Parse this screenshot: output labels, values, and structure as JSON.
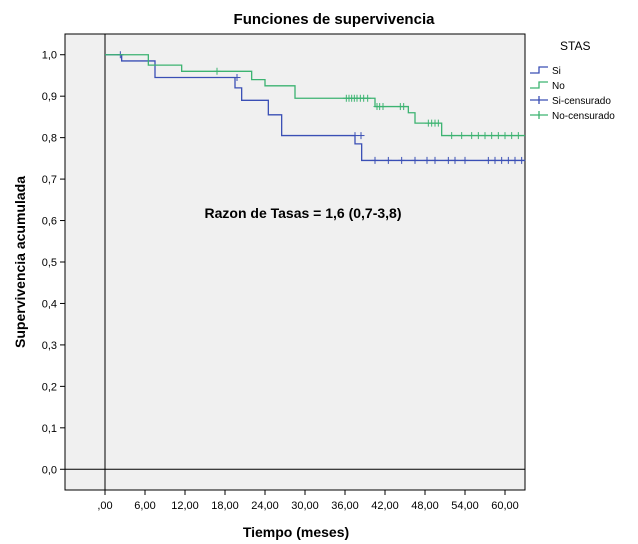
{
  "chart_data": {
    "type": "line",
    "subtype": "kaplan-meier step",
    "title": "Funciones de supervivencia",
    "xlabel": "Tiempo (meses)",
    "ylabel": "Supervivencia acumulada",
    "xlim": [
      -6,
      63
    ],
    "ylim": [
      -0.05,
      1.05
    ],
    "x_ticks": [
      0,
      6,
      12,
      18,
      24,
      30,
      36,
      42,
      48,
      54,
      60
    ],
    "x_tick_labels": [
      ",00",
      "6,00",
      "12,00",
      "18,00",
      "24,00",
      "30,00",
      "36,00",
      "42,00",
      "48,00",
      "54,00",
      "60,00"
    ],
    "y_ticks": [
      0,
      0.1,
      0.2,
      0.3,
      0.4,
      0.5,
      0.6,
      0.7,
      0.8,
      0.9,
      1.0
    ],
    "y_tick_labels": [
      "0,0",
      "0,1",
      "0,2",
      "0,3",
      "0,4",
      "0,5",
      "0,6",
      "0,7",
      "0,8",
      "0,9",
      "1,0"
    ],
    "reference_lines": {
      "x": 0,
      "y": 0
    },
    "grid": false,
    "legend": {
      "title": "STAS",
      "placement": "top-right, outside plot",
      "entries": [
        "Si",
        "No",
        "Si-censurado",
        "No-censurado"
      ]
    },
    "annotation": "Razon de Tasas = 1,6 (0,7-3,8)",
    "series": [
      {
        "name": "Si",
        "color": "#3a4fb5",
        "steps": [
          [
            0,
            1.0
          ],
          [
            2.5,
            0.985
          ],
          [
            7.5,
            0.945
          ],
          [
            19.5,
            0.92
          ],
          [
            20.5,
            0.89
          ],
          [
            24.5,
            0.855
          ],
          [
            26.5,
            0.805
          ],
          [
            37.5,
            0.785
          ],
          [
            38.5,
            0.745
          ],
          [
            63,
            0.745
          ]
        ],
        "censored": [
          [
            2.3,
            1.0
          ],
          [
            19.8,
            0.945
          ],
          [
            37.5,
            0.805
          ],
          [
            38.4,
            0.805
          ],
          [
            40.5,
            0.745
          ],
          [
            42.5,
            0.745
          ],
          [
            44.5,
            0.745
          ],
          [
            46.5,
            0.745
          ],
          [
            48.3,
            0.745
          ],
          [
            49.5,
            0.745
          ],
          [
            51.5,
            0.745
          ],
          [
            52.5,
            0.745
          ],
          [
            54.0,
            0.745
          ],
          [
            57.5,
            0.745
          ],
          [
            58.5,
            0.745
          ],
          [
            59.5,
            0.745
          ],
          [
            60.5,
            0.745
          ],
          [
            61.5,
            0.745
          ],
          [
            62.5,
            0.745
          ]
        ]
      },
      {
        "name": "No",
        "color": "#3cb371",
        "steps": [
          [
            0,
            1.0
          ],
          [
            6.5,
            0.975
          ],
          [
            11.5,
            0.96
          ],
          [
            22.0,
            0.94
          ],
          [
            24.0,
            0.925
          ],
          [
            28.5,
            0.895
          ],
          [
            40.5,
            0.875
          ],
          [
            45.5,
            0.86
          ],
          [
            46.5,
            0.835
          ],
          [
            50.5,
            0.805
          ],
          [
            63,
            0.805
          ]
        ],
        "censored": [
          [
            16.8,
            0.96
          ],
          [
            36.2,
            0.895
          ],
          [
            36.6,
            0.895
          ],
          [
            37.0,
            0.895
          ],
          [
            37.4,
            0.895
          ],
          [
            37.8,
            0.895
          ],
          [
            38.3,
            0.895
          ],
          [
            38.8,
            0.895
          ],
          [
            39.4,
            0.895
          ],
          [
            40.8,
            0.875
          ],
          [
            41.2,
            0.875
          ],
          [
            41.7,
            0.875
          ],
          [
            44.3,
            0.875
          ],
          [
            44.8,
            0.875
          ],
          [
            48.5,
            0.835
          ],
          [
            49.0,
            0.835
          ],
          [
            49.5,
            0.835
          ],
          [
            50.0,
            0.835
          ],
          [
            52.0,
            0.805
          ],
          [
            53.5,
            0.805
          ],
          [
            55.0,
            0.805
          ],
          [
            56.0,
            0.805
          ],
          [
            57.0,
            0.805
          ],
          [
            58.0,
            0.805
          ],
          [
            59.0,
            0.805
          ],
          [
            60.0,
            0.805
          ],
          [
            61.0,
            0.805
          ],
          [
            62.0,
            0.805
          ]
        ]
      }
    ]
  },
  "colors": {
    "plot_background": "#f0f0f0",
    "frame": "#000000",
    "series_si": "#3a4fb5",
    "series_no": "#3cb371"
  }
}
